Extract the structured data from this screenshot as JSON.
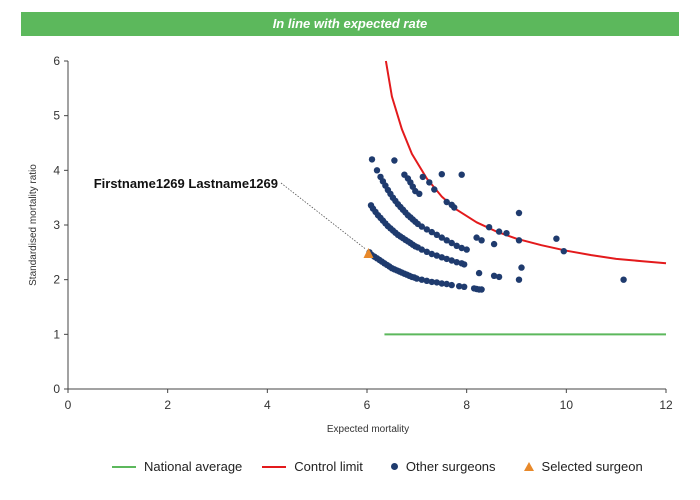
{
  "banner": {
    "text": "In line with expected rate"
  },
  "colors": {
    "banner": "#5cb85c",
    "national": "#5cb85c",
    "control": "#e31a1c",
    "others": "#1f3b6e",
    "selected": "#e8892a"
  },
  "legend": {
    "national": "National average",
    "control": "Control limit",
    "others": "Other surgeons",
    "selected": "Selected surgeon"
  },
  "chart_data": {
    "type": "scatter",
    "title": "",
    "xlabel": "Expected mortality",
    "ylabel": "Standardised mortality ratio",
    "xlim": [
      0,
      12
    ],
    "ylim": [
      0,
      6
    ],
    "xticks": [
      0,
      2,
      4,
      6,
      8,
      10,
      12
    ],
    "yticks": [
      0,
      1,
      2,
      3,
      4,
      5,
      6
    ],
    "national_average": {
      "name": "National average",
      "x": [
        6.35,
        12
      ],
      "y": [
        1,
        1
      ]
    },
    "control_limit": {
      "name": "Control limit",
      "x": [
        6.38,
        6.5,
        6.7,
        6.9,
        7.2,
        7.5,
        7.8,
        8.2,
        8.6,
        9.0,
        9.5,
        10.0,
        10.5,
        11.0,
        11.5,
        12.0
      ],
      "y": [
        6.0,
        5.35,
        4.75,
        4.3,
        3.85,
        3.52,
        3.28,
        3.05,
        2.88,
        2.75,
        2.63,
        2.53,
        2.45,
        2.38,
        2.34,
        2.3
      ]
    },
    "selected_surgeon": {
      "name": "Selected surgeon",
      "label": "Firstname1269 Lastname1269",
      "x": 6.03,
      "y": 2.47
    },
    "other_surgeons": {
      "name": "Other surgeons",
      "points": [
        [
          6.05,
          2.5
        ],
        [
          6.1,
          2.45
        ],
        [
          6.15,
          2.42
        ],
        [
          6.2,
          2.39
        ],
        [
          6.25,
          2.36
        ],
        [
          6.3,
          2.33
        ],
        [
          6.35,
          2.3
        ],
        [
          6.4,
          2.27
        ],
        [
          6.45,
          2.24
        ],
        [
          6.5,
          2.21
        ],
        [
          6.55,
          2.19
        ],
        [
          6.6,
          2.17
        ],
        [
          6.65,
          2.15
        ],
        [
          6.7,
          2.13
        ],
        [
          6.75,
          2.11
        ],
        [
          6.8,
          2.09
        ],
        [
          6.85,
          2.07
        ],
        [
          6.9,
          2.05
        ],
        [
          6.95,
          2.04
        ],
        [
          7.0,
          2.02
        ],
        [
          7.1,
          2.0
        ],
        [
          7.2,
          1.98
        ],
        [
          7.3,
          1.96
        ],
        [
          7.4,
          1.95
        ],
        [
          7.5,
          1.93
        ],
        [
          7.6,
          1.92
        ],
        [
          7.7,
          1.9
        ],
        [
          7.85,
          1.88
        ],
        [
          7.95,
          1.87
        ],
        [
          8.15,
          1.84
        ],
        [
          8.2,
          1.83
        ],
        [
          8.25,
          1.82
        ],
        [
          8.3,
          1.82
        ],
        [
          6.08,
          3.36
        ],
        [
          6.12,
          3.3
        ],
        [
          6.17,
          3.24
        ],
        [
          6.22,
          3.18
        ],
        [
          6.27,
          3.13
        ],
        [
          6.32,
          3.08
        ],
        [
          6.37,
          3.03
        ],
        [
          6.42,
          2.98
        ],
        [
          6.47,
          2.94
        ],
        [
          6.52,
          2.9
        ],
        [
          6.57,
          2.86
        ],
        [
          6.62,
          2.82
        ],
        [
          6.67,
          2.79
        ],
        [
          6.72,
          2.76
        ],
        [
          6.77,
          2.73
        ],
        [
          6.82,
          2.7
        ],
        [
          6.87,
          2.67
        ],
        [
          6.92,
          2.64
        ],
        [
          6.97,
          2.61
        ],
        [
          7.02,
          2.59
        ],
        [
          7.1,
          2.55
        ],
        [
          7.2,
          2.51
        ],
        [
          7.3,
          2.47
        ],
        [
          7.4,
          2.44
        ],
        [
          7.5,
          2.41
        ],
        [
          7.6,
          2.38
        ],
        [
          7.7,
          2.35
        ],
        [
          7.8,
          2.32
        ],
        [
          7.9,
          2.3
        ],
        [
          7.95,
          2.28
        ],
        [
          8.25,
          2.12
        ],
        [
          8.55,
          2.07
        ],
        [
          8.65,
          2.05
        ],
        [
          9.05,
          2.0
        ],
        [
          9.1,
          2.22
        ],
        [
          6.1,
          4.2
        ],
        [
          6.2,
          4.0
        ],
        [
          6.27,
          3.88
        ],
        [
          6.32,
          3.8
        ],
        [
          6.37,
          3.72
        ],
        [
          6.42,
          3.64
        ],
        [
          6.47,
          3.57
        ],
        [
          6.52,
          3.5
        ],
        [
          6.57,
          3.44
        ],
        [
          6.62,
          3.38
        ],
        [
          6.67,
          3.33
        ],
        [
          6.72,
          3.28
        ],
        [
          6.77,
          3.23
        ],
        [
          6.82,
          3.18
        ],
        [
          6.87,
          3.14
        ],
        [
          6.92,
          3.1
        ],
        [
          6.97,
          3.06
        ],
        [
          7.02,
          3.02
        ],
        [
          7.1,
          2.97
        ],
        [
          7.2,
          2.92
        ],
        [
          7.3,
          2.87
        ],
        [
          7.4,
          2.82
        ],
        [
          7.5,
          2.77
        ],
        [
          7.6,
          2.72
        ],
        [
          7.7,
          2.67
        ],
        [
          7.8,
          2.62
        ],
        [
          7.9,
          2.58
        ],
        [
          8.0,
          2.55
        ],
        [
          6.55,
          4.18
        ],
        [
          6.75,
          3.92
        ],
        [
          6.82,
          3.85
        ],
        [
          6.87,
          3.78
        ],
        [
          6.92,
          3.7
        ],
        [
          6.97,
          3.62
        ],
        [
          7.05,
          3.57
        ],
        [
          7.12,
          3.88
        ],
        [
          7.25,
          3.78
        ],
        [
          7.35,
          3.65
        ],
        [
          7.5,
          3.93
        ],
        [
          7.6,
          3.42
        ],
        [
          7.7,
          3.37
        ],
        [
          7.75,
          3.32
        ],
        [
          7.9,
          3.92
        ],
        [
          8.2,
          2.77
        ],
        [
          8.3,
          2.72
        ],
        [
          8.45,
          2.96
        ],
        [
          8.55,
          2.65
        ],
        [
          8.65,
          2.88
        ],
        [
          8.8,
          2.85
        ],
        [
          9.05,
          3.22
        ],
        [
          9.05,
          2.72
        ],
        [
          9.8,
          2.75
        ],
        [
          9.95,
          2.52
        ],
        [
          11.15,
          2.0
        ]
      ]
    }
  }
}
